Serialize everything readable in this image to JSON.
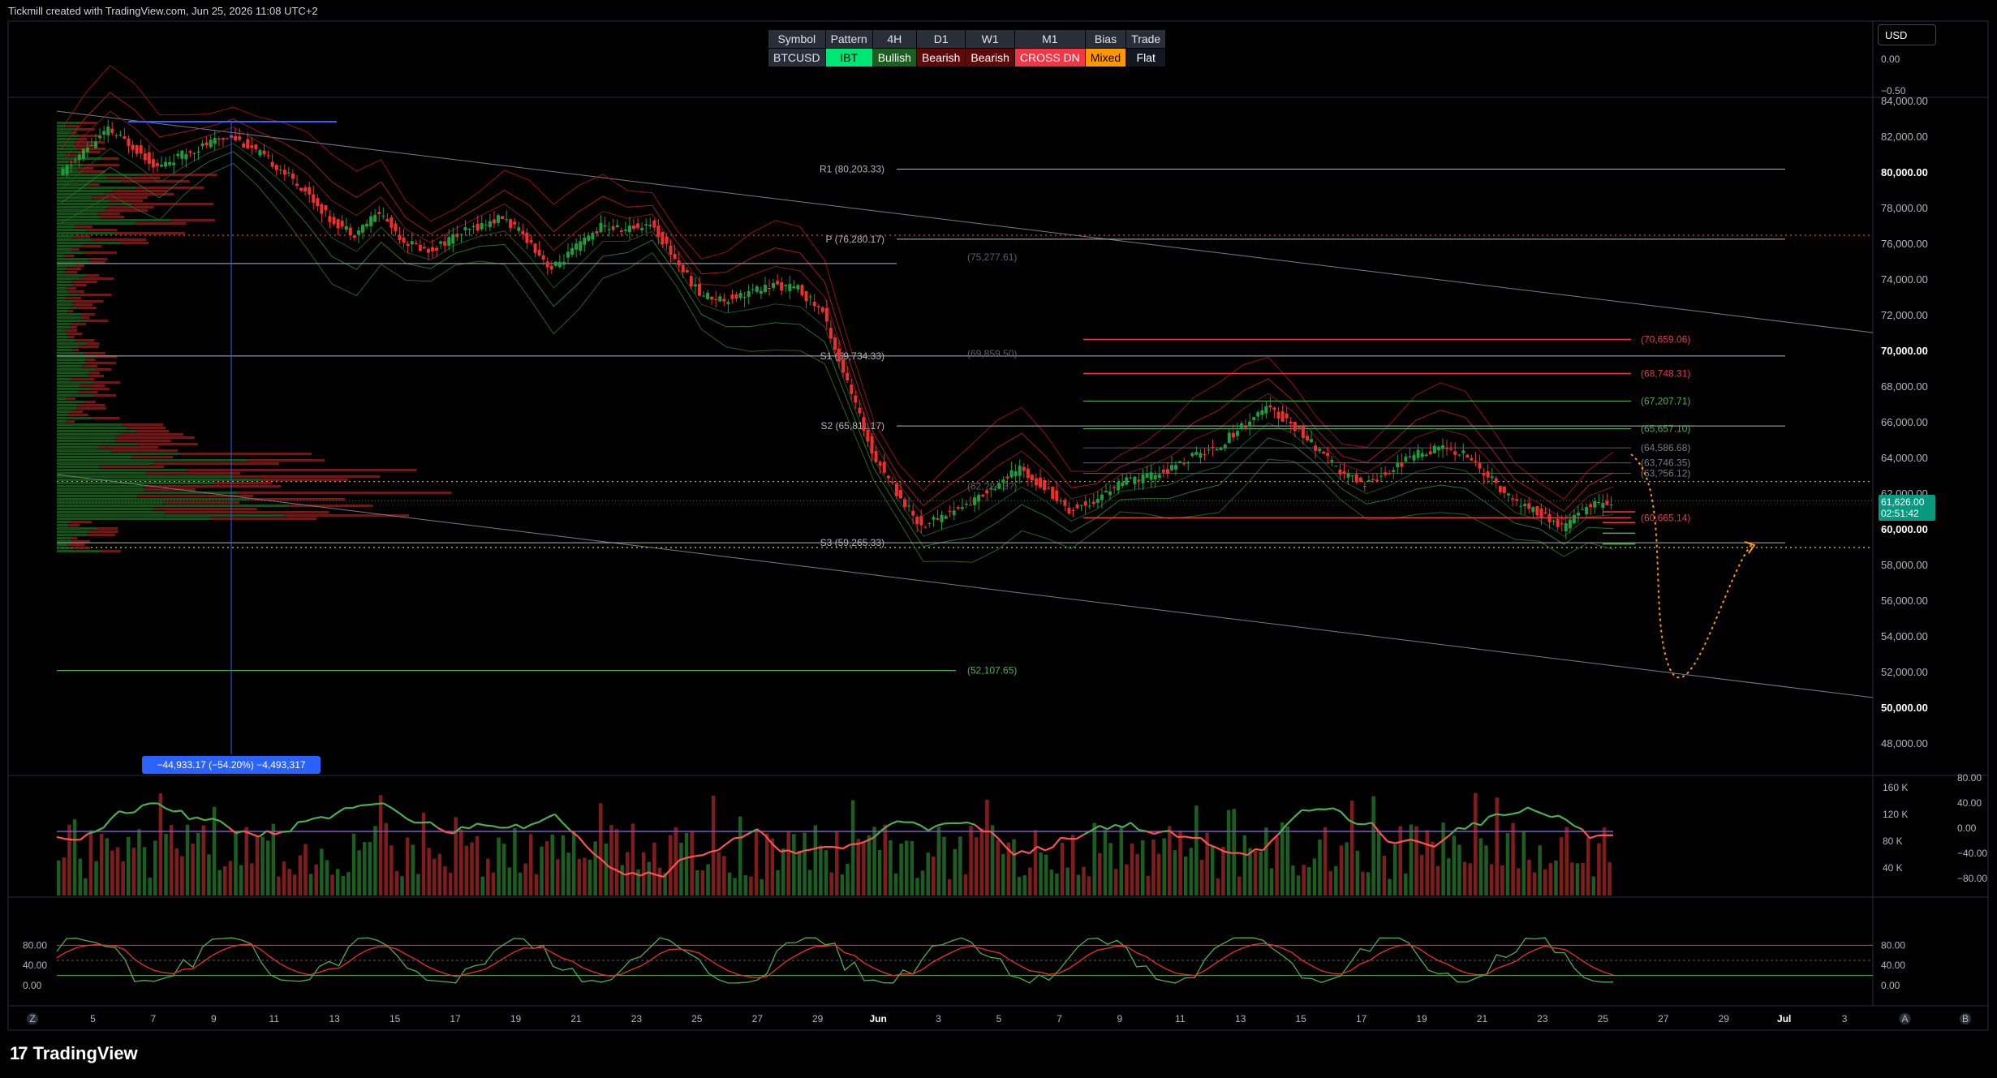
{
  "header": {
    "credit": "Tickmill created with TradingView.com, Jun 25, 2026 11:08 UTC+2"
  },
  "branding": {
    "logo_text": "TradingView",
    "logo_mark": "17"
  },
  "currency_selector": {
    "label": "USD"
  },
  "ibt_table": {
    "headers": [
      "Symbol",
      "Pattern",
      "4H",
      "D1",
      "W1",
      "M1",
      "Bias",
      "Trade"
    ],
    "values": [
      "BTCUSD",
      "IBT",
      "Bullish",
      "Bearish",
      "Bearish",
      "CROSS DN",
      "Mixed",
      "Flat"
    ]
  },
  "colors": {
    "background": "#000000",
    "bull": "#26a69a",
    "bull_green": "#1e9e3a",
    "bear": "#ef2e2e",
    "pivot_line": "#d1d4dc",
    "red_level": "#f23645",
    "green_level": "#4caf50",
    "orange": "#ff9800",
    "blue": "#2962ff",
    "price_badge": "#089981"
  },
  "chart_data": {
    "type": "line",
    "symbol": "BTCUSD",
    "ylim": [
      46500,
      85000
    ],
    "y_ticks": [
      48000,
      50000,
      52000,
      54000,
      56000,
      58000,
      60000,
      62000,
      64000,
      66000,
      68000,
      70000,
      72000,
      74000,
      76000,
      78000,
      80000,
      82000,
      84000
    ],
    "y_tick_labels": [
      "48,000.00",
      "50,000.00",
      "52,000.00",
      "54,000.00",
      "56,000.00",
      "58,000.00",
      "60,000.00",
      "62,000.00",
      "64,000.00",
      "66,000.00",
      "68,000.00",
      "70,000.00",
      "72,000.00",
      "74,000.00",
      "76,000.00",
      "78,000.00",
      "80,000.00",
      "82,000.00",
      "84,000.00"
    ],
    "x_tick_labels": [
      "Z",
      "5",
      "7",
      "9",
      "11",
      "13",
      "15",
      "17",
      "19",
      "21",
      "23",
      "25",
      "27",
      "29",
      "Jun",
      "3",
      "5",
      "7",
      "9",
      "11",
      "13",
      "15",
      "17",
      "19",
      "21",
      "23",
      "25",
      "27",
      "29",
      "Jul",
      "3",
      "A",
      "B"
    ],
    "last_price": {
      "value": 61626.0,
      "label": "61,626.00",
      "countdown": "02:51:42"
    },
    "top_pane": {
      "labels": [
        "0.00",
        "−0.50"
      ]
    },
    "price_series": {
      "name": "",
      "values": [
        79800,
        81200,
        82400,
        81500,
        80300,
        81000,
        81600,
        82100,
        81200,
        80200,
        79000,
        77400,
        76600,
        77800,
        76200,
        75600,
        76400,
        77000,
        77500,
        76300,
        74600,
        75800,
        77000,
        76800,
        77200,
        75200,
        73200,
        72900,
        73300,
        73700,
        73500,
        72200,
        68200,
        64400,
        62100,
        60200,
        60900,
        61500,
        62500,
        63400,
        62400,
        61100,
        61600,
        62600,
        62900,
        63300,
        64100,
        64600,
        65800,
        66800,
        66000,
        64600,
        63200,
        62600,
        63300,
        64200,
        64600,
        64300,
        63000,
        61600,
        61000,
        60100,
        61300,
        61626
      ]
    },
    "pivot_levels": [
      {
        "label": "R1 (80,203.33)",
        "value": 80203.33
      },
      {
        "label": "P (76,280.17)",
        "value": 76280.17
      },
      {
        "label": "S1 (69,734.33)",
        "value": 69734.33
      },
      {
        "label": "S2 (65,811.17)",
        "value": 65811.17
      },
      {
        "label": "S3 (59,265.33)",
        "value": 59265.33
      }
    ],
    "faded_levels": [
      {
        "label": "(75,277.61)",
        "value": 75277.61
      },
      {
        "label": "(69,859.50)",
        "value": 69859.5
      },
      {
        "label": "(62,?24.3?)",
        "value": 62424.3
      }
    ],
    "red_levels": [
      {
        "label": "(70,659.06)",
        "value": 70659.06
      },
      {
        "label": "(68,748.31)",
        "value": 68748.31
      },
      {
        "label": "(60,665.14)",
        "value": 60665.14
      }
    ],
    "green_levels": [
      {
        "label": "(67,207.71)",
        "value": 67207.71
      },
      {
        "label": "(65,657.10)",
        "value": 65657.1
      },
      {
        "label": "(52,107.65)",
        "value": 52107.65
      }
    ],
    "grey_levels": [
      {
        "label": "(64,586.68)",
        "value": 64586.68
      },
      {
        "label": "(63,746.35)",
        "value": 63746.35
      },
      {
        "label": "(63,?56.12)",
        "value": 63156.12
      }
    ],
    "measure_label": "−44,933.17 (−54.20%) −4,493,317",
    "volume_pane": {
      "y_ticks": [
        "160 K",
        "120 K",
        "80 K",
        "40 K"
      ],
      "osc_ticks": [
        "80.00",
        "40.00",
        "0.00",
        "−40.00",
        "−80.00"
      ]
    },
    "stoch_pane": {
      "left_ticks": [
        "80.00",
        "40.00",
        "0.00"
      ],
      "right_ticks": [
        "80.00",
        "40.00",
        "0.00"
      ]
    }
  }
}
